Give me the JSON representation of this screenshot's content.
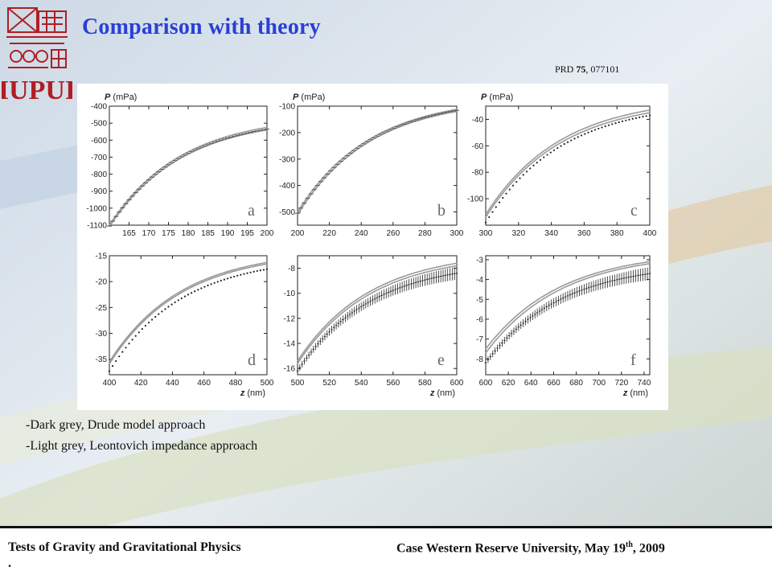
{
  "slide": {
    "title": "Comparison with theory",
    "reference_prefix": "PRD ",
    "reference_volume": "75",
    "reference_suffix": ", 077101",
    "logo_text": "IUPUI",
    "caption_line1": "-Dark grey, Drude model approach",
    "caption_line2": "-Light grey, Leontovich impedance approach",
    "footer_left": "Tests of Gravity and Gravitational Physics",
    "footer_right_prefix": "Case Western Reserve University, May 19",
    "footer_right_sup": "th",
    "footer_right_suffix": ", 2009",
    "footer_dot": "."
  },
  "colors": {
    "title": "#2a3fd6",
    "theory_line": "#9a9a9a",
    "data_marks": "#222222",
    "logo": "#b01e23"
  },
  "chart_data": [
    {
      "panel_label": "a",
      "type": "line",
      "ylabel_var": "P",
      "ylabel_unit": "(mPa)",
      "xlabel": "",
      "xlim": [
        160,
        200
      ],
      "ylim": [
        -1100,
        -400
      ],
      "xticks": [
        165,
        170,
        175,
        180,
        185,
        190,
        195,
        200
      ],
      "yticks": [
        -400,
        -500,
        -600,
        -700,
        -800,
        -900,
        -1000,
        -1100
      ],
      "marker": "dash",
      "series": [
        {
          "role": "theory",
          "x": [
            160,
            200
          ],
          "y": [
            -1100,
            -525
          ]
        },
        {
          "role": "theory",
          "x": [
            160,
            200
          ],
          "y": [
            -1110,
            -540
          ]
        },
        {
          "role": "data",
          "x": [
            160,
            200
          ],
          "y": [
            -1105,
            -535
          ]
        }
      ]
    },
    {
      "panel_label": "b",
      "type": "line",
      "ylabel_var": "P",
      "ylabel_unit": "(mPa)",
      "xlabel": "",
      "xlim": [
        200,
        300
      ],
      "ylim": [
        -550,
        -100
      ],
      "xticks": [
        200,
        220,
        240,
        260,
        280,
        300
      ],
      "yticks": [
        -100,
        -200,
        -300,
        -400,
        -500
      ],
      "marker": "dash",
      "series": [
        {
          "role": "theory",
          "x": [
            200,
            300
          ],
          "y": [
            -500,
            -112
          ]
        },
        {
          "role": "theory",
          "x": [
            200,
            300
          ],
          "y": [
            -510,
            -120
          ]
        },
        {
          "role": "data",
          "x": [
            200,
            300
          ],
          "y": [
            -505,
            -116
          ]
        }
      ]
    },
    {
      "panel_label": "c",
      "type": "line",
      "ylabel_var": "P",
      "ylabel_unit": "(mPa)",
      "xlabel": "",
      "xlim": [
        300,
        400
      ],
      "ylim": [
        -120,
        -30
      ],
      "xticks": [
        300,
        320,
        340,
        360,
        380,
        400
      ],
      "yticks": [
        -40,
        -60,
        -80,
        -100
      ],
      "marker": "dot",
      "series": [
        {
          "role": "theory",
          "x": [
            300,
            400
          ],
          "y": [
            -112,
            -33
          ]
        },
        {
          "role": "theory",
          "x": [
            300,
            400
          ],
          "y": [
            -114,
            -35
          ]
        },
        {
          "role": "data",
          "x": [
            300,
            400
          ],
          "y": [
            -118,
            -37
          ]
        }
      ]
    },
    {
      "panel_label": "d",
      "type": "line",
      "ylabel_var": "",
      "ylabel_unit": "",
      "xlabel_var": "z",
      "xlabel_unit": "(nm)",
      "xlim": [
        400,
        500
      ],
      "ylim": [
        -38,
        -15
      ],
      "xticks": [
        400,
        420,
        440,
        460,
        480,
        500
      ],
      "yticks": [
        -15,
        -20,
        -25,
        -30,
        -35
      ],
      "marker": "dot",
      "series": [
        {
          "role": "theory",
          "x": [
            400,
            500
          ],
          "y": [
            -35.5,
            -16.3
          ]
        },
        {
          "role": "theory",
          "x": [
            400,
            500
          ],
          "y": [
            -35.9,
            -16.6
          ]
        },
        {
          "role": "data",
          "x": [
            400,
            500
          ],
          "y": [
            -37.3,
            -17.6
          ]
        }
      ]
    },
    {
      "panel_label": "e",
      "type": "line",
      "ylabel_var": "",
      "ylabel_unit": "",
      "xlabel_var": "z",
      "xlabel_unit": "(nm)",
      "xlim": [
        500,
        600
      ],
      "ylim": [
        -16.5,
        -7
      ],
      "xticks": [
        500,
        520,
        540,
        560,
        580,
        600
      ],
      "yticks": [
        -8,
        -10,
        -12,
        -14,
        -16
      ],
      "marker": "errorbar",
      "series": [
        {
          "role": "theory",
          "x": [
            500,
            600
          ],
          "y": [
            -15.4,
            -7.6
          ]
        },
        {
          "role": "theory",
          "x": [
            500,
            600
          ],
          "y": [
            -15.6,
            -7.8
          ]
        },
        {
          "role": "data",
          "x": [
            500,
            600
          ],
          "y": [
            -16.2,
            -8.4
          ]
        }
      ]
    },
    {
      "panel_label": "f",
      "type": "line",
      "ylabel_var": "",
      "ylabel_unit": "",
      "xlabel_var": "z",
      "xlabel_unit": "(nm)",
      "xlim": [
        600,
        745
      ],
      "ylim": [
        -8.8,
        -2.8
      ],
      "xticks": [
        600,
        620,
        640,
        660,
        680,
        700,
        720,
        740
      ],
      "yticks": [
        -3,
        -4,
        -5,
        -6,
        -7,
        -8
      ],
      "marker": "errorbar",
      "series": [
        {
          "role": "theory",
          "x": [
            600,
            745
          ],
          "y": [
            -7.5,
            -3.1
          ]
        },
        {
          "role": "theory",
          "x": [
            600,
            745
          ],
          "y": [
            -7.7,
            -3.2
          ]
        },
        {
          "role": "data",
          "x": [
            600,
            745
          ],
          "y": [
            -8.2,
            -3.7
          ]
        }
      ]
    }
  ]
}
